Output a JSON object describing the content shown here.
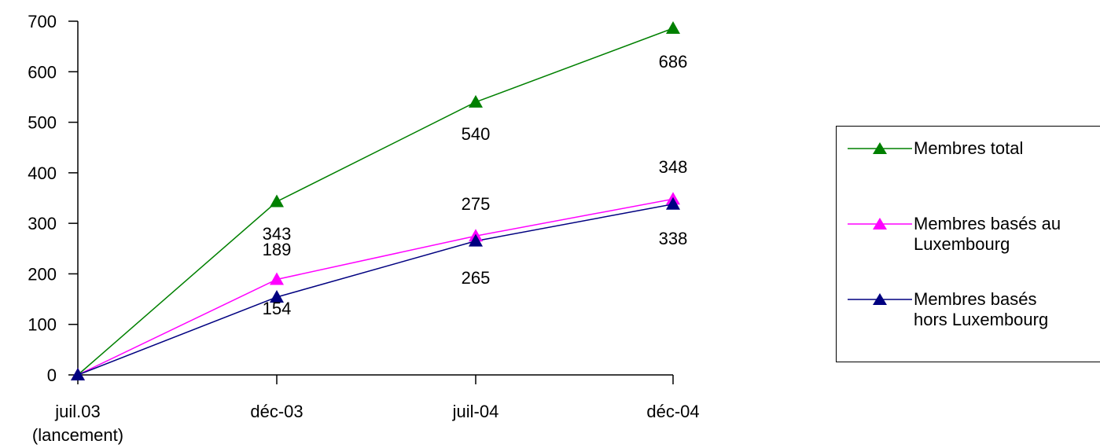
{
  "chart_data": {
    "type": "line",
    "categories": [
      "juil.03\n(lancement)",
      "déc-03",
      "juil-04",
      "déc-04"
    ],
    "ylim": [
      0,
      700
    ],
    "yticks": [
      0,
      100,
      200,
      300,
      400,
      500,
      600,
      700
    ],
    "grid": false,
    "legend_position": "right",
    "series": [
      {
        "name": "Membres total",
        "color": "#008000",
        "values": [
          0,
          343,
          540,
          686
        ],
        "labels": [
          "",
          "343",
          "540",
          "686"
        ]
      },
      {
        "name": "Membres basés au Luxembourg",
        "color": "#ff00ff",
        "values": [
          0,
          189,
          275,
          348
        ],
        "labels": [
          "",
          "189",
          "275",
          "348"
        ]
      },
      {
        "name": "Membres basés hors Luxembourg",
        "color": "#000080",
        "values": [
          0,
          154,
          265,
          338
        ],
        "labels": [
          "",
          "154",
          "265",
          "338"
        ]
      }
    ]
  }
}
